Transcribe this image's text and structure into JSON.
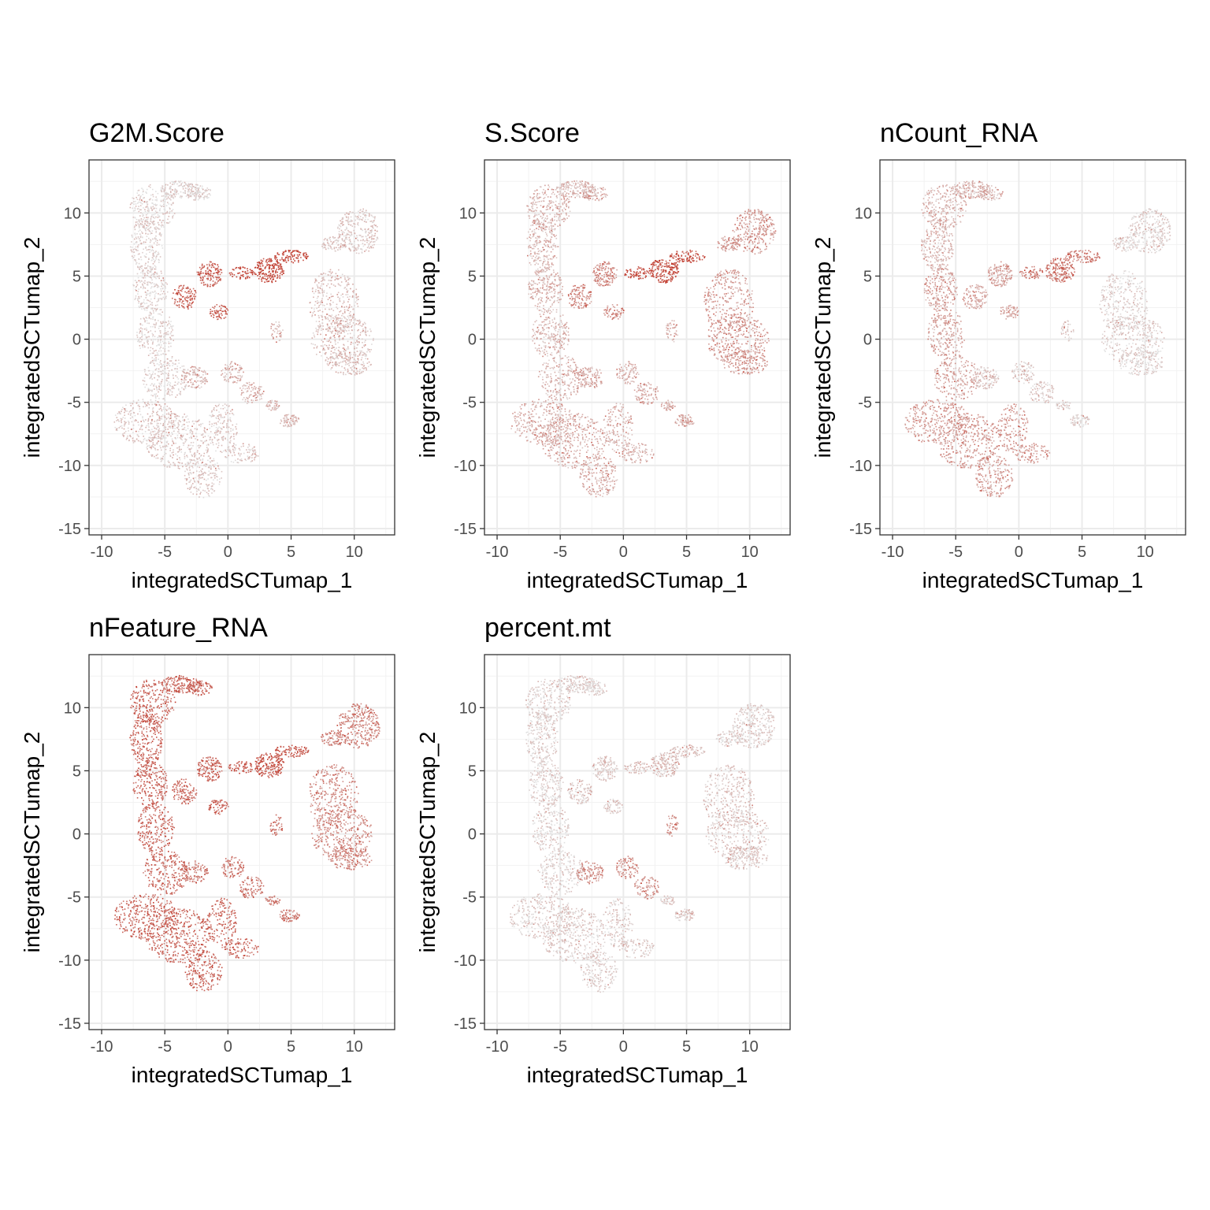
{
  "chart_data": [
    {
      "type": "scatter",
      "title": "G2M.Score",
      "xlabel": "integratedSCTumap_1",
      "ylabel": "integratedSCTumap_2",
      "xlim": [
        -11,
        13.2
      ],
      "ylim": [
        -15.5,
        14.2
      ],
      "xticks": [
        -10,
        -5,
        0,
        5,
        10
      ],
      "xtick_labels": [
        "-10",
        "-5",
        "0",
        "5",
        "10"
      ],
      "yticks": [
        -15,
        -10,
        -5,
        0,
        5,
        10
      ],
      "ytick_labels": [
        "-15",
        "-10",
        "-5",
        "0",
        "5",
        "10"
      ],
      "grid": true,
      "color_low": "#e0e0e0",
      "color_high": "#c0392b",
      "regions": [
        {
          "label": "top-left arc",
          "x": -5.5,
          "y": 7.5,
          "intensity": 0.1
        },
        {
          "label": "left trunk",
          "x": -5.5,
          "y": 0,
          "intensity": 0.1
        },
        {
          "label": "bottom lobe",
          "x": -4,
          "y": -8.5,
          "intensity": 0.15
        },
        {
          "label": "right lobe",
          "x": 8.5,
          "y": 1,
          "intensity": 0.2
        },
        {
          "label": "top-right lobe",
          "x": 10,
          "y": 8.5,
          "intensity": 0.15
        },
        {
          "label": "bridge hotspot",
          "x": 3,
          "y": 5.5,
          "intensity": 0.9
        },
        {
          "label": "mid hotspot",
          "x": -1.5,
          "y": 5,
          "intensity": 0.75
        },
        {
          "label": "center ring",
          "x": -2,
          "y": -3,
          "intensity": 0.25
        },
        {
          "label": "small cluster",
          "x": 4.5,
          "y": -6.2,
          "intensity": 0.25
        }
      ]
    },
    {
      "type": "scatter",
      "title": "S.Score",
      "xlabel": "integratedSCTumap_1",
      "ylabel": "integratedSCTumap_2",
      "xlim": [
        -11,
        13.2
      ],
      "ylim": [
        -15.5,
        14.2
      ],
      "xticks": [
        -10,
        -5,
        0,
        5,
        10
      ],
      "xtick_labels": [
        "-10",
        "-5",
        "0",
        "5",
        "10"
      ],
      "yticks": [
        -15,
        -10,
        -5,
        0,
        5,
        10
      ],
      "ytick_labels": [
        "-15",
        "-10",
        "-5",
        "0",
        "5",
        "10"
      ],
      "grid": true,
      "color_low": "#e0e0e0",
      "color_high": "#c0392b",
      "regions": [
        {
          "label": "top-left arc",
          "x": -5.5,
          "y": 7.5,
          "intensity": 0.25
        },
        {
          "label": "left trunk",
          "x": -5.5,
          "y": 0,
          "intensity": 0.25
        },
        {
          "label": "bottom lobe",
          "x": -4,
          "y": -8.5,
          "intensity": 0.3
        },
        {
          "label": "right lobe",
          "x": 8.5,
          "y": 1,
          "intensity": 0.4
        },
        {
          "label": "top-right lobe",
          "x": 10,
          "y": 8.5,
          "intensity": 0.4
        },
        {
          "label": "bridge hotspot",
          "x": 3,
          "y": 5.5,
          "intensity": 0.85
        },
        {
          "label": "mid hotspot",
          "x": -1.5,
          "y": 5,
          "intensity": 0.5
        },
        {
          "label": "center ring",
          "x": -2,
          "y": -3,
          "intensity": 0.3
        },
        {
          "label": "small cluster",
          "x": 4.5,
          "y": -6.2,
          "intensity": 0.35
        }
      ]
    },
    {
      "type": "scatter",
      "title": "nCount_RNA",
      "xlabel": "integratedSCTumap_1",
      "ylabel": "integratedSCTumap_2",
      "xlim": [
        -11,
        13.2
      ],
      "ylim": [
        -15.5,
        14.2
      ],
      "xticks": [
        -10,
        -5,
        0,
        5,
        10
      ],
      "xtick_labels": [
        "-10",
        "-5",
        "0",
        "5",
        "10"
      ],
      "yticks": [
        -15,
        -10,
        -5,
        0,
        5,
        10
      ],
      "ytick_labels": [
        "-15",
        "-10",
        "-5",
        "0",
        "5",
        "10"
      ],
      "grid": true,
      "color_low": "#e0e0e0",
      "color_high": "#c0392b",
      "regions": [
        {
          "label": "top-left arc",
          "x": -5.5,
          "y": 7.5,
          "intensity": 0.25
        },
        {
          "label": "left trunk",
          "x": -5.5,
          "y": 0,
          "intensity": 0.35
        },
        {
          "label": "bottom lobe",
          "x": -4,
          "y": -8.5,
          "intensity": 0.4
        },
        {
          "label": "right lobe",
          "x": 8.5,
          "y": 1,
          "intensity": 0.1
        },
        {
          "label": "top-right lobe",
          "x": 10,
          "y": 8.5,
          "intensity": 0.1
        },
        {
          "label": "bridge hotspot",
          "x": 3,
          "y": 5.5,
          "intensity": 0.6
        },
        {
          "label": "mid hotspot",
          "x": -1.5,
          "y": 5,
          "intensity": 0.35
        },
        {
          "label": "center ring",
          "x": -2,
          "y": -3,
          "intensity": 0.15
        },
        {
          "label": "small cluster",
          "x": 4.5,
          "y": -6.2,
          "intensity": 0.1
        }
      ]
    },
    {
      "type": "scatter",
      "title": "nFeature_RNA",
      "xlabel": "integratedSCTumap_1",
      "ylabel": "integratedSCTumap_2",
      "xlim": [
        -11,
        13.2
      ],
      "ylim": [
        -15.5,
        14.2
      ],
      "xticks": [
        -10,
        -5,
        0,
        5,
        10
      ],
      "xtick_labels": [
        "-10",
        "-5",
        "0",
        "5",
        "10"
      ],
      "yticks": [
        -15,
        -10,
        -5,
        0,
        5,
        10
      ],
      "ytick_labels": [
        "-15",
        "-10",
        "-5",
        "0",
        "5",
        "10"
      ],
      "grid": true,
      "color_low": "#e0e0e0",
      "color_high": "#c0392b",
      "regions": [
        {
          "label": "top-left arc",
          "x": -5.5,
          "y": 7.5,
          "intensity": 0.7
        },
        {
          "label": "left trunk",
          "x": -5.5,
          "y": 0,
          "intensity": 0.7
        },
        {
          "label": "bottom lobe",
          "x": -4,
          "y": -8.5,
          "intensity": 0.7
        },
        {
          "label": "right lobe",
          "x": 8.5,
          "y": 1,
          "intensity": 0.5
        },
        {
          "label": "top-right lobe",
          "x": 10,
          "y": 8.5,
          "intensity": 0.55
        },
        {
          "label": "bridge hotspot",
          "x": 3,
          "y": 5.5,
          "intensity": 0.8
        },
        {
          "label": "mid hotspot",
          "x": -1.5,
          "y": 5,
          "intensity": 0.7
        },
        {
          "label": "center ring",
          "x": -2,
          "y": -3,
          "intensity": 0.6
        },
        {
          "label": "small cluster",
          "x": 4.5,
          "y": -6.2,
          "intensity": 0.55
        }
      ]
    },
    {
      "type": "scatter",
      "title": "percent.mt",
      "xlabel": "integratedSCTumap_1",
      "ylabel": "integratedSCTumap_2",
      "xlim": [
        -11,
        13.2
      ],
      "ylim": [
        -15.5,
        14.2
      ],
      "xticks": [
        -10,
        -5,
        0,
        5,
        10
      ],
      "xtick_labels": [
        "-10",
        "-5",
        "0",
        "5",
        "10"
      ],
      "yticks": [
        -15,
        -10,
        -5,
        0,
        5,
        10
      ],
      "ytick_labels": [
        "-15",
        "-10",
        "-5",
        "0",
        "5",
        "10"
      ],
      "grid": true,
      "color_low": "#e0e0e0",
      "color_high": "#c0392b",
      "regions": [
        {
          "label": "top-left arc",
          "x": -5.5,
          "y": 7.5,
          "intensity": 0.1
        },
        {
          "label": "left trunk",
          "x": -5.5,
          "y": 0,
          "intensity": 0.1
        },
        {
          "label": "bottom lobe",
          "x": -4,
          "y": -8.5,
          "intensity": 0.12
        },
        {
          "label": "right lobe",
          "x": 8.5,
          "y": 1,
          "intensity": 0.15
        },
        {
          "label": "top-right lobe",
          "x": 10,
          "y": 8.5,
          "intensity": 0.12
        },
        {
          "label": "bridge hotspot",
          "x": 3,
          "y": 5.5,
          "intensity": 0.2
        },
        {
          "label": "mid hotspot",
          "x": -1.5,
          "y": 5,
          "intensity": 0.15
        },
        {
          "label": "center ring",
          "x": -2,
          "y": -3,
          "intensity": 0.45
        },
        {
          "label": "small cluster",
          "x": 4.5,
          "y": -6.2,
          "intensity": 0.15
        }
      ]
    }
  ]
}
